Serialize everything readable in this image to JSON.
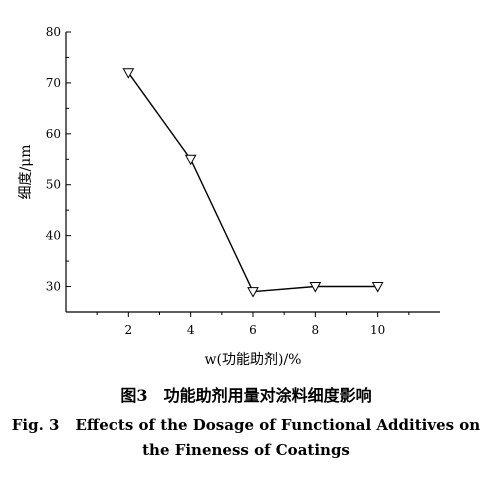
{
  "chart_data": {
    "type": "line",
    "x": [
      2,
      4,
      6,
      8,
      10
    ],
    "series": [
      {
        "values": [
          72,
          55,
          29,
          30,
          30
        ]
      }
    ],
    "xlabel": "w(功能助剂)/%",
    "ylabel": "细度/μm",
    "xticks": [
      "2",
      "4",
      "6",
      "8",
      "10"
    ],
    "yticks": [
      "30",
      "40",
      "50",
      "60",
      "70",
      "80"
    ],
    "xlim": [
      0,
      12
    ],
    "ylim": [
      25,
      80
    ],
    "grid": false,
    "marker": "down-triangle",
    "line_color": "#000000"
  },
  "caption": {
    "cn_label": "图3",
    "cn_text": "功能助剂用量对涂料细度影响",
    "en_label": "Fig. 3",
    "en_text_line1": "Effects of the Dosage of Functional Additives on",
    "en_text_line2": "the Fineness of Coatings"
  }
}
